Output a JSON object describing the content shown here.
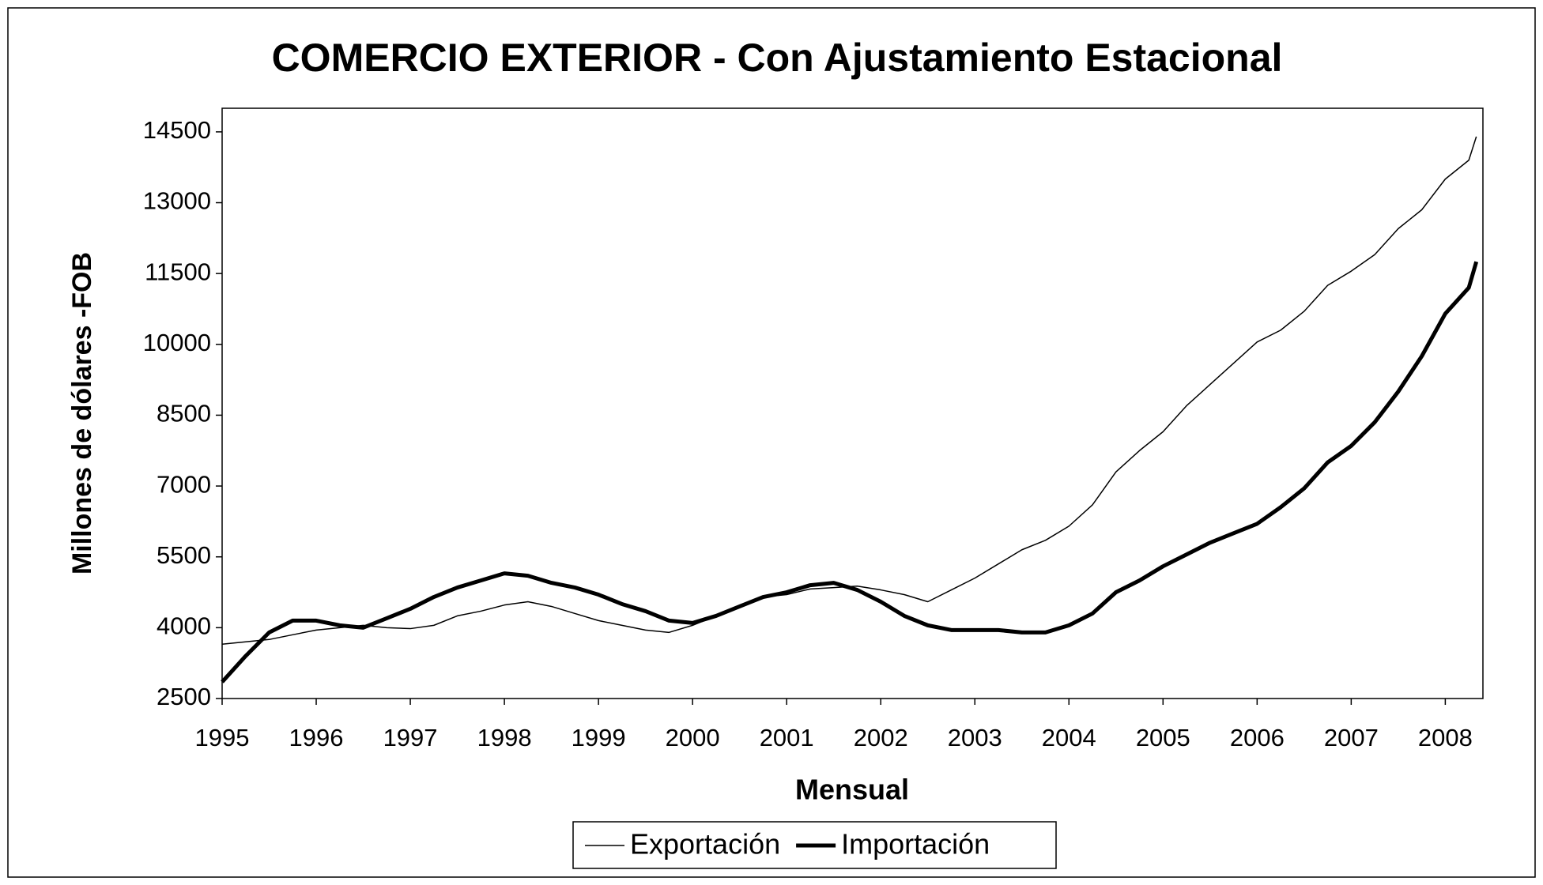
{
  "chart_data": {
    "type": "line",
    "title": "COMERCIO EXTERIOR - Con Ajustamiento Estacional",
    "x_label": "Mensual",
    "y_label": "Millones de dólares -FOB",
    "x": [
      1995,
      1995.25,
      1995.5,
      1995.75,
      1996,
      1996.25,
      1996.5,
      1996.75,
      1997,
      1997.25,
      1997.5,
      1997.75,
      1998,
      1998.25,
      1998.5,
      1998.75,
      1999,
      1999.25,
      1999.5,
      1999.75,
      2000,
      2000.25,
      2000.5,
      2000.75,
      2001,
      2001.25,
      2001.5,
      2001.75,
      2002,
      2002.25,
      2002.5,
      2002.75,
      2003,
      2003.25,
      2003.5,
      2003.75,
      2004,
      2004.25,
      2004.5,
      2004.75,
      2005,
      2005.25,
      2005.5,
      2005.75,
      2006,
      2006.25,
      2006.5,
      2006.75,
      2007,
      2007.25,
      2007.5,
      2007.75,
      2008,
      2008.25,
      2008.33
    ],
    "series": [
      {
        "name": "Exportación",
        "color": "#000000",
        "width": 1.5,
        "values": [
          3650,
          3700,
          3750,
          3850,
          3950,
          4000,
          4050,
          4000,
          3980,
          4050,
          4250,
          4350,
          4480,
          4550,
          4450,
          4300,
          4150,
          4050,
          3950,
          3900,
          4050,
          4250,
          4450,
          4650,
          4700,
          4820,
          4850,
          4880,
          4800,
          4700,
          4550,
          4800,
          5050,
          5350,
          5650,
          5850,
          6150,
          6600,
          7300,
          7750,
          8150,
          8700,
          9150,
          9600,
          10050,
          10300,
          10700,
          11250,
          11550,
          11900,
          12450,
          12850,
          13500,
          13900,
          14400
        ]
      },
      {
        "name": "Importación",
        "color": "#000000",
        "width": 5,
        "values": [
          2850,
          3400,
          3900,
          4150,
          4150,
          4050,
          4000,
          4200,
          4400,
          4650,
          4850,
          5000,
          5150,
          5100,
          4950,
          4850,
          4700,
          4500,
          4350,
          4150,
          4100,
          4250,
          4450,
          4650,
          4750,
          4900,
          4950,
          4800,
          4550,
          4250,
          4050,
          3950,
          3950,
          3950,
          3900,
          3900,
          4050,
          4300,
          4750,
          5000,
          5300,
          5550,
          5800,
          6000,
          6200,
          6550,
          6950,
          7500,
          7850,
          8350,
          9000,
          9750,
          10650,
          11200,
          11750
        ]
      }
    ],
    "xlim": [
      1995,
      2008.4
    ],
    "xticks": [
      1995,
      1996,
      1997,
      1998,
      1999,
      2000,
      2001,
      2002,
      2003,
      2004,
      2005,
      2006,
      2007,
      2008
    ],
    "ylim": [
      2500,
      15000
    ],
    "yticks": [
      2500,
      4000,
      5500,
      7000,
      8500,
      10000,
      11500,
      13000,
      14500
    ],
    "grid": false,
    "legend": "bottom"
  }
}
